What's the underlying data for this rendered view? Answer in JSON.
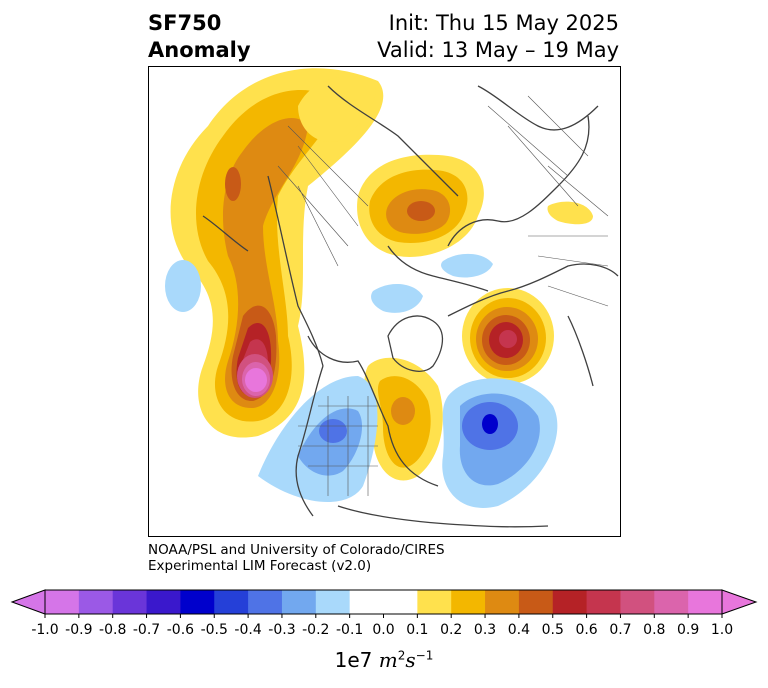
{
  "header": {
    "variable": "SF750",
    "kind": "Anomaly",
    "init": "Init: Thu 15 May 2025",
    "valid": "Valid: 13 May – 19 May"
  },
  "credit": {
    "line1": "NOAA/PSL and University of Colorado/CIRES",
    "line2": "Experimental LIM Forecast (v2.0)"
  },
  "colorbar": {
    "unit_prefix": "1e7",
    "ticks": [
      "-1.0",
      "-0.9",
      "-0.8",
      "-0.7",
      "-0.6",
      "-0.5",
      "-0.4",
      "-0.3",
      "-0.2",
      "-0.1",
      "0.0",
      "0.1",
      "0.2",
      "0.3",
      "0.4",
      "0.5",
      "0.6",
      "0.7",
      "0.8",
      "0.9",
      "1.0"
    ],
    "colors": [
      "#9b59e6",
      "#6a35d9",
      "#3a18cc",
      "#0000cc",
      "#2540d8",
      "#4f73e6",
      "#72a8ef",
      "#a9d9fb",
      "#ffffff",
      "#ffffff",
      "#ffe14d",
      "#f3b700",
      "#de8a12",
      "#c85a17",
      "#b52226",
      "#c5354e",
      "#d1517f",
      "#db64ac"
    ],
    "under_color": "#d575e8",
    "over_color": "#e876dc"
  },
  "map_colors": {
    "ocean": "#ffffff",
    "coast": "#404040",
    "border": "#555555"
  }
}
